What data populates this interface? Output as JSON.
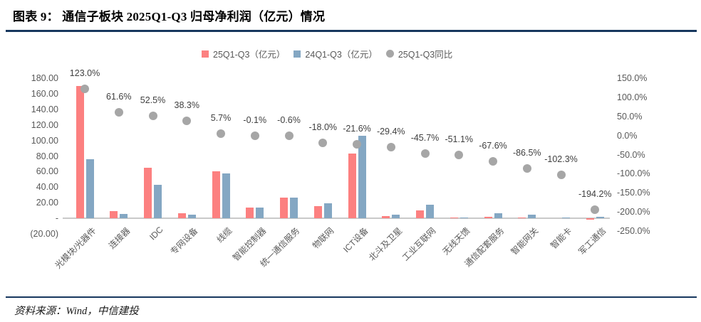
{
  "header": {
    "figure_title": "图表 9：  通信子板块 2025Q1-Q3 归母净利润（亿元）情况"
  },
  "footer": {
    "source_text": "资料来源：Wind，中信建投"
  },
  "colors": {
    "accent_navy": "#17375E",
    "bar_2025": "#FC8080",
    "bar_2024": "#84A7C3",
    "yoy_dot": "#A6A6A6",
    "axis_text": "#595959",
    "pct_label_text": "#404040",
    "zero_line": "#C9C9C9"
  },
  "chart_data": {
    "type": "bar",
    "subtype": "grouped-bars-with-scatter-overlay",
    "title": "通信子板块 2025Q1-Q3 归母净利润（亿元）情况",
    "grid": false,
    "legend_position": "top-center",
    "legend": [
      "25Q1-Q3（亿元）",
      "24Q1-Q3（亿元）",
      "25Q1-Q3同比"
    ],
    "categories": [
      "光模块/光器件",
      "连接器",
      "IDC",
      "专网设备",
      "线缆",
      "智能控制器",
      "统一通信服务",
      "物联网",
      "ICT设备",
      "北斗及卫星",
      "工业互联网",
      "无线天馈",
      "通信配套服务",
      "智能网关",
      "智能卡",
      "军工通信"
    ],
    "series": [
      {
        "name": "25Q1-Q3（亿元）",
        "type": "bar",
        "axis": "left",
        "color": "#FC8080",
        "values": [
          169.5,
          8.9,
          65.0,
          6.5,
          60.4,
          13.3,
          26.4,
          15.5,
          82.8,
          3.0,
          9.6,
          0.4,
          2.1,
          0.6,
          0.0,
          -2.0
        ]
      },
      {
        "name": "24Q1-Q3（亿元）",
        "type": "bar",
        "axis": "left",
        "color": "#84A7C3",
        "values": [
          76.2,
          5.5,
          42.6,
          4.7,
          57.1,
          13.3,
          26.6,
          18.9,
          105.6,
          4.2,
          17.7,
          0.8,
          6.5,
          4.2,
          0.9,
          2.1
        ]
      },
      {
        "name": "25Q1-Q3同比",
        "type": "scatter",
        "axis": "right",
        "color": "#A6A6A6",
        "values_pct": [
          123.0,
          61.6,
          52.5,
          38.3,
          5.7,
          -0.1,
          -0.6,
          -18.0,
          -21.6,
          -29.4,
          -45.7,
          -51.1,
          -67.6,
          -86.5,
          -102.3,
          -194.2
        ],
        "point_labels": [
          "123.0%",
          "61.6%",
          "52.5%",
          "38.3%",
          "5.7%",
          "-0.1%",
          "-0.6%",
          "-18.0%",
          "-21.6%",
          "-29.4%",
          "-45.7%",
          "-51.1%",
          "-67.6%",
          "-86.5%",
          "-102.3%",
          "-194.2%"
        ]
      }
    ],
    "left_axis": {
      "range": [
        -20,
        180
      ],
      "ticks": [
        "180.00",
        "160.00",
        "140.00",
        "120.00",
        "100.00",
        "80.00",
        "60.00",
        "40.00",
        "20.00",
        "-",
        "(20.00)"
      ]
    },
    "right_axis": {
      "range": [
        -250,
        150
      ],
      "ticks": [
        "150.0%",
        "100.0%",
        "50.0%",
        "0.0%",
        "-50.0%",
        "-100.0%",
        "-150.0%",
        "-200.0%",
        "-250.0%"
      ]
    }
  }
}
